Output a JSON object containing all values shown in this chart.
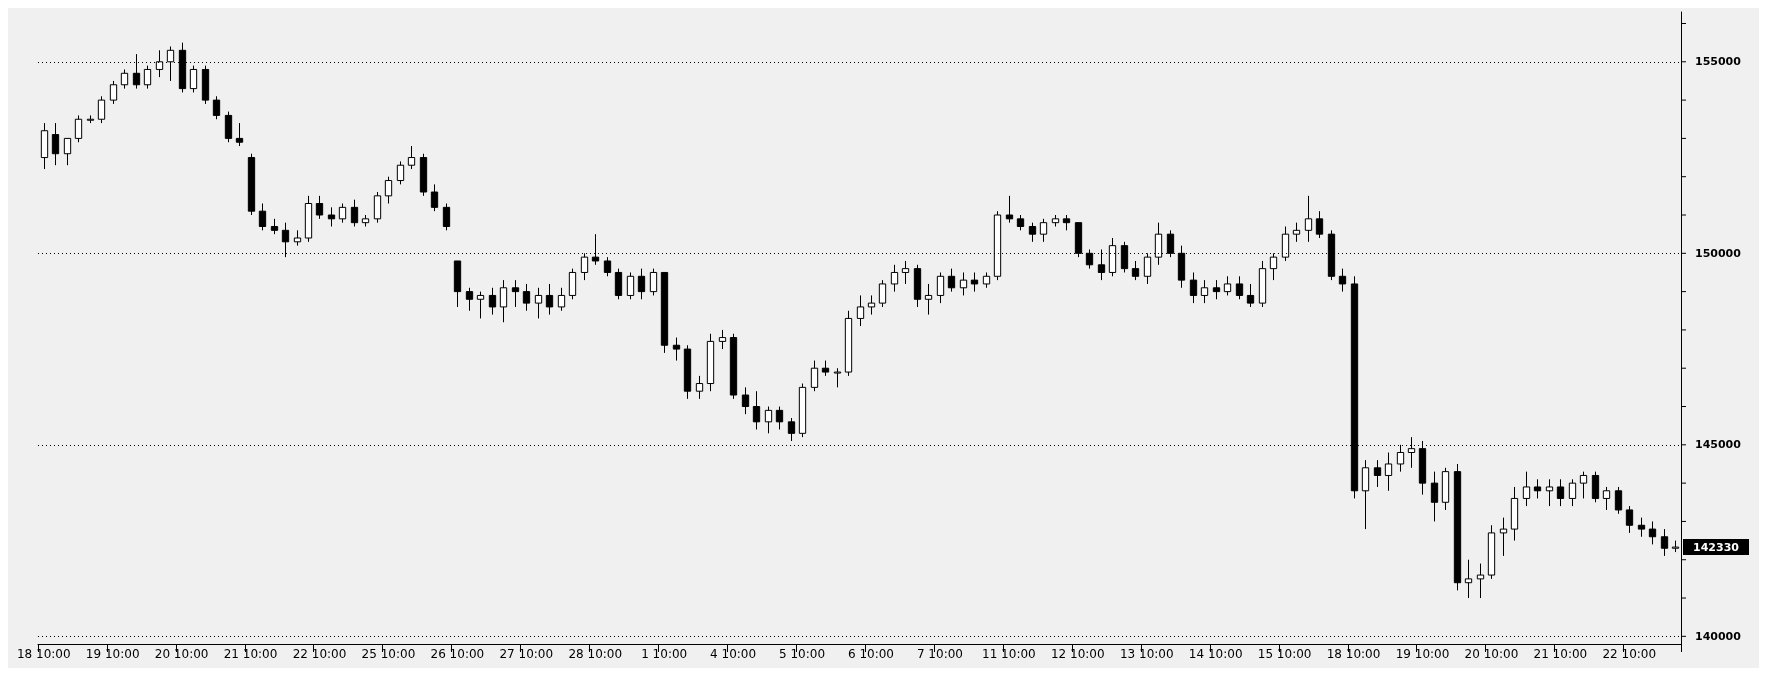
{
  "chart_data": {
    "type": "candlestick",
    "categories": [
      "18 10:00",
      null,
      null,
      null,
      null,
      null,
      "19 10:00",
      null,
      null,
      null,
      null,
      null,
      "20 10:00",
      null,
      null,
      null,
      null,
      null,
      "21 10:00",
      null,
      null,
      null,
      null,
      null,
      "22 10:00",
      null,
      null,
      null,
      null,
      null,
      "25 10:00",
      null,
      null,
      null,
      null,
      null,
      "26 10:00",
      null,
      null,
      null,
      null,
      null,
      "27 10:00",
      null,
      null,
      null,
      null,
      null,
      "28 10:00",
      null,
      null,
      null,
      null,
      null,
      "1 10:00",
      null,
      null,
      null,
      null,
      null,
      "4 10:00",
      null,
      null,
      null,
      null,
      null,
      "5 10:00",
      null,
      null,
      null,
      null,
      null,
      "6 10:00",
      null,
      null,
      null,
      null,
      null,
      "7 10:00",
      null,
      null,
      null,
      null,
      null,
      "11 10:00",
      null,
      null,
      null,
      null,
      null,
      "12 10:00",
      null,
      null,
      null,
      null,
      null,
      "13 10:00",
      null,
      null,
      null,
      null,
      null,
      "14 10:00",
      null,
      null,
      null,
      null,
      null,
      "15 10:00",
      null,
      null,
      null,
      null,
      null,
      "18 10:00",
      null,
      null,
      null,
      null,
      null,
      "19 10:00",
      null,
      null,
      null,
      null,
      null,
      "20 10:00",
      null,
      null,
      null,
      null,
      null,
      "21 10:00",
      null,
      null,
      null,
      null,
      null,
      "22 10:00",
      null,
      null,
      null,
      null
    ],
    "ohlc": [
      [
        152500,
        153400,
        152200,
        153200
      ],
      [
        153100,
        153400,
        152300,
        152600
      ],
      [
        152600,
        153000,
        152300,
        153000
      ],
      [
        153000,
        153600,
        152900,
        153500
      ],
      [
        153500,
        153600,
        153400,
        153500
      ],
      [
        153500,
        154100,
        153400,
        154000
      ],
      [
        154000,
        154500,
        153900,
        154400
      ],
      [
        154400,
        154800,
        154300,
        154700
      ],
      [
        154700,
        155200,
        154300,
        154400
      ],
      [
        154400,
        154900,
        154300,
        154800
      ],
      [
        154800,
        155300,
        154600,
        155000
      ],
      [
        155000,
        155400,
        154500,
        155300
      ],
      [
        155300,
        155500,
        154200,
        154300
      ],
      [
        154300,
        154900,
        154200,
        154800
      ],
      [
        154800,
        154900,
        153900,
        154000
      ],
      [
        154000,
        154100,
        153500,
        153600
      ],
      [
        153600,
        153700,
        152900,
        153000
      ],
      [
        153000,
        153400,
        152800,
        152900
      ],
      [
        152500,
        152600,
        151000,
        151100
      ],
      [
        151100,
        151300,
        150600,
        150700
      ],
      [
        150700,
        150900,
        150500,
        150600
      ],
      [
        150600,
        150800,
        149900,
        150300
      ],
      [
        150300,
        150600,
        150200,
        150400
      ],
      [
        150400,
        151500,
        150300,
        151300
      ],
      [
        151300,
        151500,
        150900,
        151000
      ],
      [
        151000,
        151200,
        150700,
        150900
      ],
      [
        150900,
        151300,
        150800,
        151200
      ],
      [
        151200,
        151400,
        150700,
        150800
      ],
      [
        150800,
        151000,
        150700,
        150900
      ],
      [
        150900,
        151600,
        150800,
        151500
      ],
      [
        151500,
        152000,
        151300,
        151900
      ],
      [
        151900,
        152400,
        151800,
        152300
      ],
      [
        152300,
        152800,
        152200,
        152500
      ],
      [
        152500,
        152600,
        151500,
        151600
      ],
      [
        151600,
        151800,
        151100,
        151200
      ],
      [
        151200,
        151300,
        150600,
        150700
      ],
      [
        149800,
        149800,
        148600,
        149000
      ],
      [
        149000,
        149100,
        148500,
        148800
      ],
      [
        148800,
        149000,
        148300,
        148900
      ],
      [
        148900,
        149100,
        148400,
        148600
      ],
      [
        148600,
        149300,
        148200,
        149100
      ],
      [
        149100,
        149300,
        148600,
        149000
      ],
      [
        149000,
        149200,
        148500,
        148700
      ],
      [
        148700,
        149100,
        148300,
        148900
      ],
      [
        148900,
        149200,
        148400,
        148600
      ],
      [
        148600,
        149100,
        148500,
        148900
      ],
      [
        148900,
        149600,
        148800,
        149500
      ],
      [
        149500,
        150000,
        149300,
        149900
      ],
      [
        149900,
        150500,
        149700,
        149800
      ],
      [
        149800,
        149900,
        149400,
        149500
      ],
      [
        149500,
        149600,
        148800,
        148900
      ],
      [
        148900,
        149500,
        148800,
        149400
      ],
      [
        149400,
        149600,
        148800,
        149000
      ],
      [
        149000,
        149600,
        148900,
        149500
      ],
      [
        149500,
        149500,
        147400,
        147600
      ],
      [
        147600,
        147800,
        147200,
        147500
      ],
      [
        147500,
        147600,
        146200,
        146400
      ],
      [
        146400,
        146800,
        146200,
        146600
      ],
      [
        146600,
        147900,
        146400,
        147700
      ],
      [
        147700,
        148000,
        147500,
        147800
      ],
      [
        147800,
        147900,
        146200,
        146300
      ],
      [
        146300,
        146500,
        145800,
        146000
      ],
      [
        146000,
        146400,
        145400,
        145600
      ],
      [
        145600,
        146000,
        145300,
        145900
      ],
      [
        145900,
        146000,
        145400,
        145600
      ],
      [
        145600,
        145700,
        145100,
        145300
      ],
      [
        145300,
        146600,
        145200,
        146500
      ],
      [
        146500,
        147200,
        146400,
        147000
      ],
      [
        147000,
        147200,
        146800,
        146900
      ],
      [
        146900,
        147000,
        146500,
        146900
      ],
      [
        146900,
        148500,
        146800,
        148300
      ],
      [
        148300,
        148900,
        148100,
        148600
      ],
      [
        148600,
        148900,
        148400,
        148700
      ],
      [
        148700,
        149300,
        148600,
        149200
      ],
      [
        149200,
        149700,
        149000,
        149500
      ],
      [
        149500,
        149800,
        149200,
        149600
      ],
      [
        149600,
        149700,
        148600,
        148800
      ],
      [
        148800,
        149200,
        148400,
        148900
      ],
      [
        148900,
        149500,
        148700,
        149400
      ],
      [
        149400,
        149600,
        149000,
        149100
      ],
      [
        149100,
        149500,
        148900,
        149300
      ],
      [
        149300,
        149500,
        149000,
        149200
      ],
      [
        149200,
        149500,
        149100,
        149400
      ],
      [
        149400,
        151100,
        149300,
        151000
      ],
      [
        151000,
        151500,
        150800,
        150900
      ],
      [
        150900,
        151000,
        150600,
        150700
      ],
      [
        150700,
        150800,
        150300,
        150500
      ],
      [
        150500,
        150900,
        150300,
        150800
      ],
      [
        150800,
        151000,
        150700,
        150900
      ],
      [
        150900,
        151000,
        150600,
        150800
      ],
      [
        150800,
        150800,
        149900,
        150000
      ],
      [
        150000,
        150100,
        149600,
        149700
      ],
      [
        149700,
        150100,
        149300,
        149500
      ],
      [
        149500,
        150400,
        149400,
        150200
      ],
      [
        150200,
        150300,
        149500,
        149600
      ],
      [
        149600,
        149800,
        149300,
        149400
      ],
      [
        149400,
        150000,
        149200,
        149900
      ],
      [
        149900,
        150800,
        149700,
        150500
      ],
      [
        150500,
        150600,
        149900,
        150000
      ],
      [
        150000,
        150200,
        149100,
        149300
      ],
      [
        149300,
        149500,
        148700,
        148900
      ],
      [
        148900,
        149300,
        148700,
        149100
      ],
      [
        149100,
        149300,
        148800,
        149000
      ],
      [
        149000,
        149400,
        148900,
        149200
      ],
      [
        149200,
        149400,
        148800,
        148900
      ],
      [
        148900,
        149200,
        148600,
        148700
      ],
      [
        148700,
        149800,
        148600,
        149600
      ],
      [
        149600,
        150000,
        149300,
        149900
      ],
      [
        149900,
        150700,
        149800,
        150500
      ],
      [
        150500,
        150800,
        150300,
        150600
      ],
      [
        150600,
        151500,
        150300,
        150900
      ],
      [
        150900,
        151100,
        150400,
        150500
      ],
      [
        150500,
        150600,
        149300,
        149400
      ],
      [
        149400,
        149600,
        149000,
        149200
      ],
      [
        149200,
        149400,
        143600,
        143800
      ],
      [
        143800,
        144600,
        142800,
        144400
      ],
      [
        144400,
        144600,
        143900,
        144200
      ],
      [
        144200,
        144800,
        143800,
        144500
      ],
      [
        144500,
        145000,
        144300,
        144800
      ],
      [
        144800,
        145200,
        144400,
        144900
      ],
      [
        144900,
        145100,
        143700,
        144000
      ],
      [
        144000,
        144300,
        143000,
        143500
      ],
      [
        143500,
        144400,
        143300,
        144300
      ],
      [
        144300,
        144500,
        141200,
        141400
      ],
      [
        141400,
        142000,
        141000,
        141500
      ],
      [
        141500,
        141900,
        141000,
        141600
      ],
      [
        141600,
        142900,
        141500,
        142700
      ],
      [
        142700,
        143100,
        142100,
        142800
      ],
      [
        142800,
        143900,
        142500,
        143600
      ],
      [
        143600,
        144300,
        143400,
        143900
      ],
      [
        143900,
        144100,
        143600,
        143800
      ],
      [
        143800,
        144100,
        143400,
        143900
      ],
      [
        143900,
        144100,
        143400,
        143600
      ],
      [
        143600,
        144100,
        143400,
        144000
      ],
      [
        144000,
        144300,
        143600,
        144200
      ],
      [
        144200,
        144300,
        143500,
        143600
      ],
      [
        143600,
        143900,
        143300,
        143800
      ],
      [
        143800,
        143900,
        143200,
        143300
      ],
      [
        143300,
        143400,
        142700,
        142900
      ],
      [
        142900,
        143100,
        142600,
        142800
      ],
      [
        142800,
        143000,
        142400,
        142600
      ],
      [
        142600,
        142800,
        142100,
        142300
      ],
      [
        142300,
        142500,
        142200,
        142330
      ]
    ],
    "ylim": [
      139800,
      156300
    ],
    "yticks": [
      140000,
      {
        "value": 141000,
        "label": null
      },
      {
        "value": 142000,
        "label": null
      },
      {
        "value": 143000,
        "label": null
      },
      {
        "value": 144000,
        "label": null
      },
      145000,
      {
        "value": 146000,
        "label": null
      },
      {
        "value": 147000,
        "label": null
      },
      {
        "value": 148000,
        "label": null
      },
      {
        "value": 149000,
        "label": null
      },
      150000,
      {
        "value": 151000,
        "label": null
      },
      {
        "value": 152000,
        "label": null
      },
      {
        "value": 153000,
        "label": null
      },
      {
        "value": 154000,
        "label": null
      },
      155000,
      {
        "value": 156000,
        "label": null
      }
    ],
    "grid": "y",
    "annotations": [
      "142330"
    ]
  }
}
